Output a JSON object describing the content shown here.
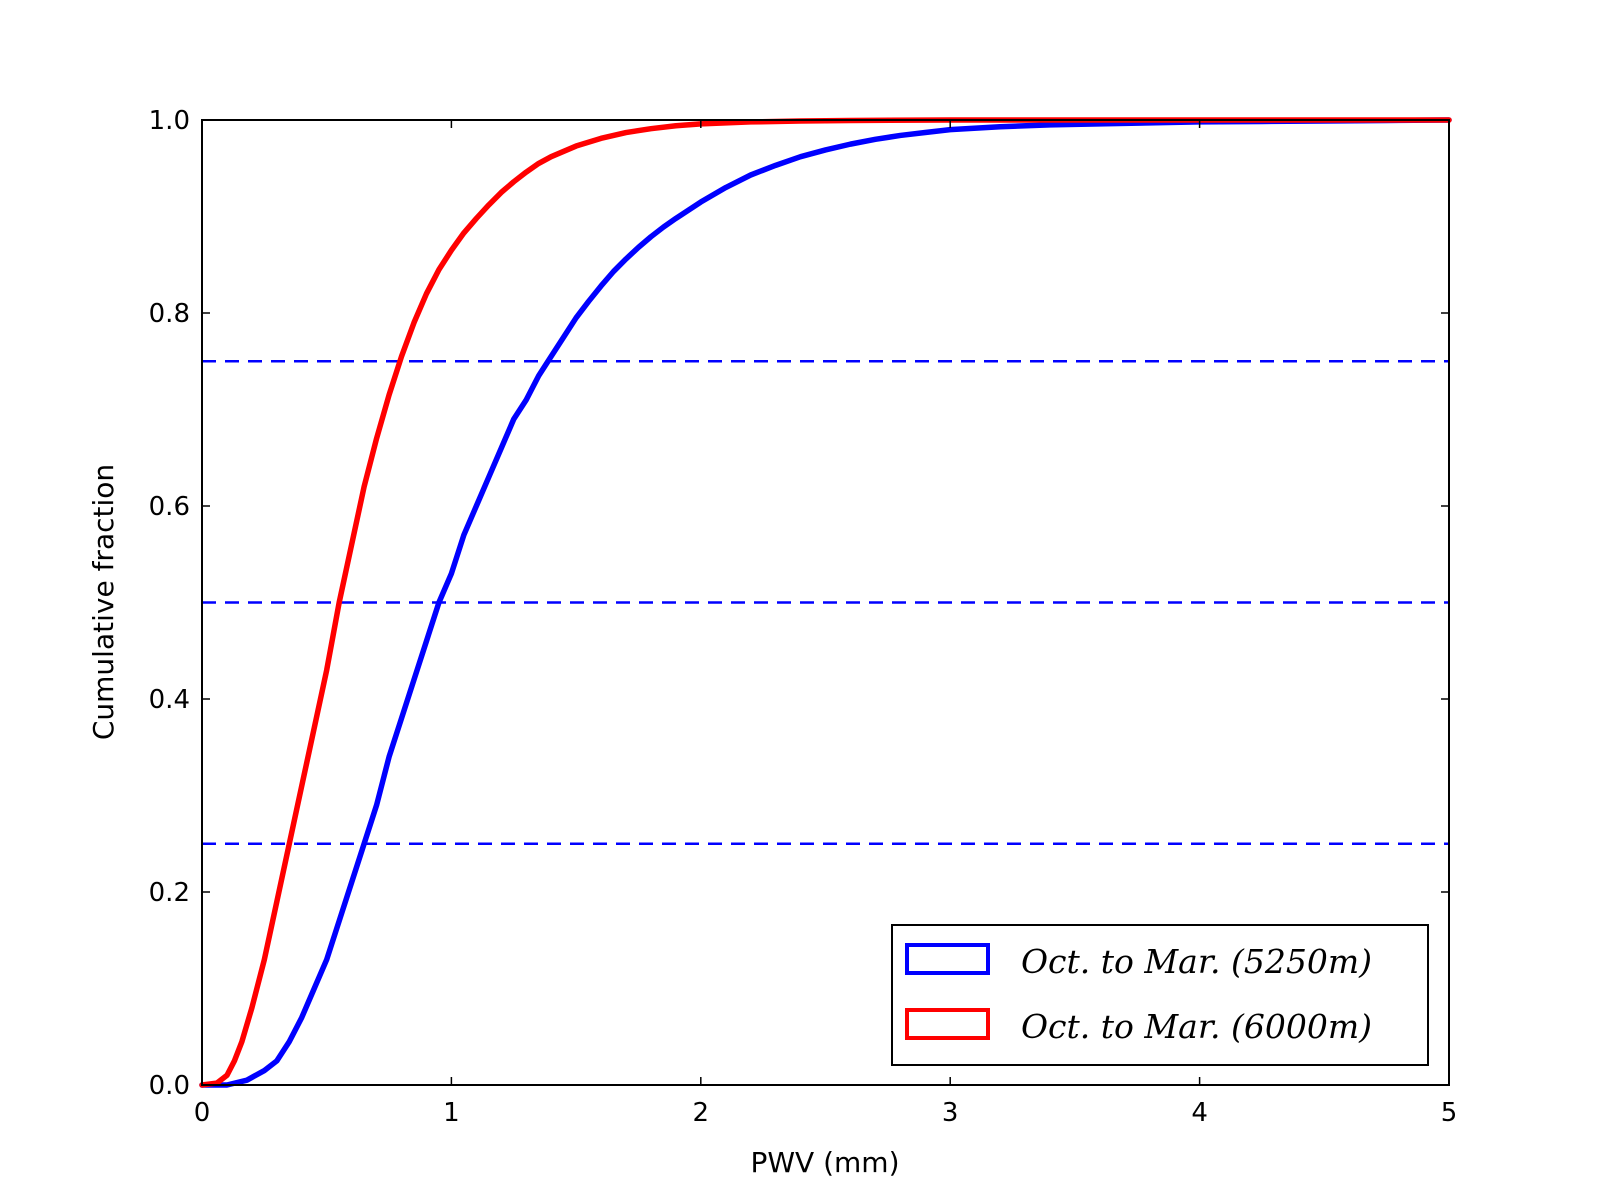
{
  "chart_data": {
    "type": "line",
    "title": "",
    "xlabel": "PWV (mm)",
    "ylabel": "Cumulative fraction",
    "xlim": [
      0,
      5
    ],
    "ylim": [
      0,
      1.0
    ],
    "grid": false,
    "legend_position": "bottom-right",
    "x_ticks": [
      0,
      1,
      2,
      3,
      4,
      5
    ],
    "x_tick_labels": [
      "0",
      "1",
      "2",
      "3",
      "4",
      "5"
    ],
    "y_ticks": [
      0,
      0.2,
      0.4,
      0.6,
      0.8,
      1.0
    ],
    "y_tick_labels": [
      "0.0",
      "0.2",
      "0.4",
      "0.6",
      "0.8",
      "1.0"
    ],
    "reference_lines": [
      {
        "orientation": "horizontal",
        "y": 0.25,
        "style": "dashed",
        "color": "#0000ff"
      },
      {
        "orientation": "horizontal",
        "y": 0.5,
        "style": "dashed",
        "color": "#0000ff"
      },
      {
        "orientation": "horizontal",
        "y": 0.75,
        "style": "dashed",
        "color": "#0000ff"
      }
    ],
    "series": [
      {
        "name": "Oct. to Mar. (5250m)",
        "color": "#0000ff",
        "points": [
          [
            0.0,
            0.0
          ],
          [
            0.1,
            0.0
          ],
          [
            0.18,
            0.005
          ],
          [
            0.25,
            0.015
          ],
          [
            0.3,
            0.025
          ],
          [
            0.35,
            0.045
          ],
          [
            0.4,
            0.07
          ],
          [
            0.45,
            0.1
          ],
          [
            0.5,
            0.13
          ],
          [
            0.55,
            0.17
          ],
          [
            0.6,
            0.21
          ],
          [
            0.65,
            0.25
          ],
          [
            0.7,
            0.29
          ],
          [
            0.75,
            0.34
          ],
          [
            0.8,
            0.38
          ],
          [
            0.85,
            0.42
          ],
          [
            0.9,
            0.46
          ],
          [
            0.95,
            0.5
          ],
          [
            1.0,
            0.53
          ],
          [
            1.05,
            0.57
          ],
          [
            1.1,
            0.6
          ],
          [
            1.15,
            0.63
          ],
          [
            1.2,
            0.66
          ],
          [
            1.25,
            0.69
          ],
          [
            1.3,
            0.71
          ],
          [
            1.35,
            0.735
          ],
          [
            1.4,
            0.755
          ],
          [
            1.45,
            0.775
          ],
          [
            1.5,
            0.795
          ],
          [
            1.55,
            0.812
          ],
          [
            1.6,
            0.828
          ],
          [
            1.65,
            0.843
          ],
          [
            1.7,
            0.856
          ],
          [
            1.75,
            0.868
          ],
          [
            1.8,
            0.879
          ],
          [
            1.85,
            0.889
          ],
          [
            1.9,
            0.898
          ],
          [
            2.0,
            0.915
          ],
          [
            2.1,
            0.93
          ],
          [
            2.2,
            0.943
          ],
          [
            2.3,
            0.953
          ],
          [
            2.4,
            0.962
          ],
          [
            2.5,
            0.969
          ],
          [
            2.6,
            0.975
          ],
          [
            2.7,
            0.98
          ],
          [
            2.8,
            0.984
          ],
          [
            2.9,
            0.987
          ],
          [
            3.0,
            0.99
          ],
          [
            3.2,
            0.993
          ],
          [
            3.4,
            0.995
          ],
          [
            3.6,
            0.996
          ],
          [
            3.8,
            0.997
          ],
          [
            4.0,
            0.998
          ],
          [
            4.25,
            0.9985
          ],
          [
            4.5,
            0.999
          ],
          [
            4.75,
            0.9995
          ],
          [
            5.0,
            1.0
          ]
        ]
      },
      {
        "name": "Oct. to Mar. (6000m)",
        "color": "#ff0000",
        "points": [
          [
            0.0,
            0.0
          ],
          [
            0.06,
            0.002
          ],
          [
            0.1,
            0.01
          ],
          [
            0.13,
            0.025
          ],
          [
            0.16,
            0.045
          ],
          [
            0.2,
            0.08
          ],
          [
            0.25,
            0.13
          ],
          [
            0.3,
            0.19
          ],
          [
            0.35,
            0.25
          ],
          [
            0.4,
            0.31
          ],
          [
            0.45,
            0.37
          ],
          [
            0.5,
            0.43
          ],
          [
            0.55,
            0.5
          ],
          [
            0.6,
            0.56
          ],
          [
            0.65,
            0.62
          ],
          [
            0.7,
            0.67
          ],
          [
            0.75,
            0.715
          ],
          [
            0.8,
            0.755
          ],
          [
            0.85,
            0.79
          ],
          [
            0.9,
            0.82
          ],
          [
            0.95,
            0.845
          ],
          [
            1.0,
            0.865
          ],
          [
            1.05,
            0.883
          ],
          [
            1.1,
            0.898
          ],
          [
            1.15,
            0.912
          ],
          [
            1.2,
            0.925
          ],
          [
            1.25,
            0.936
          ],
          [
            1.3,
            0.946
          ],
          [
            1.35,
            0.955
          ],
          [
            1.4,
            0.962
          ],
          [
            1.5,
            0.973
          ],
          [
            1.6,
            0.981
          ],
          [
            1.7,
            0.987
          ],
          [
            1.8,
            0.991
          ],
          [
            1.9,
            0.994
          ],
          [
            2.0,
            0.996
          ],
          [
            2.2,
            0.998
          ],
          [
            2.4,
            0.999
          ],
          [
            2.6,
            0.9995
          ],
          [
            3.0,
            1.0
          ],
          [
            5.0,
            1.0
          ]
        ]
      }
    ]
  }
}
